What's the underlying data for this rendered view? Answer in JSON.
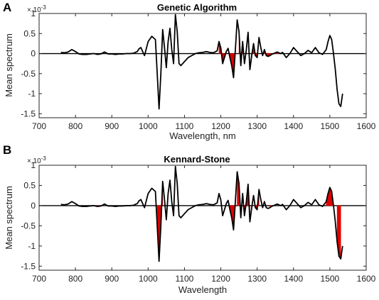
{
  "chart_data": [
    {
      "type": "line",
      "panel_label": "A",
      "title": "Genetic Algorithm",
      "xlabel": "Wavelength, nm",
      "ylabel": "Mean spectrum",
      "y_exponent": "× 10",
      "y_exponent_power": "-3",
      "xlim": [
        700,
        1600
      ],
      "ylim": [
        -1.6,
        1.0
      ],
      "xticks": [
        "700",
        "800",
        "900",
        "1000",
        "1100",
        "1200",
        "1300",
        "1400",
        "1500",
        "1600"
      ],
      "yticks": [
        "1",
        "0.5",
        "0",
        "-0.5",
        "-1",
        "-1.5"
      ],
      "grid": false,
      "series": [
        {
          "color": "#000000",
          "x": [
            760,
            770,
            780,
            790,
            800,
            810,
            820,
            830,
            840,
            850,
            860,
            870,
            880,
            890,
            900,
            910,
            920,
            930,
            940,
            950,
            960,
            970,
            975,
            980,
            990,
            1000,
            1010,
            1020,
            1025,
            1030,
            1035,
            1040,
            1045,
            1050,
            1055,
            1060,
            1065,
            1070,
            1075,
            1080,
            1085,
            1090,
            1100,
            1110,
            1120,
            1130,
            1140,
            1150,
            1160,
            1170,
            1180,
            1190,
            1195,
            1200,
            1205,
            1210,
            1215,
            1220,
            1225,
            1230,
            1235,
            1240,
            1245,
            1250,
            1255,
            1260,
            1265,
            1270,
            1275,
            1280,
            1285,
            1290,
            1295,
            1300,
            1305,
            1310,
            1315,
            1320,
            1325,
            1330,
            1335,
            1340,
            1345,
            1350,
            1355,
            1360,
            1365,
            1370,
            1380,
            1390,
            1400,
            1410,
            1420,
            1430,
            1440,
            1450,
            1460,
            1470,
            1480,
            1490,
            1495,
            1500,
            1505,
            1510,
            1515,
            1520,
            1525,
            1530,
            1535
          ],
          "y": [
            0.03,
            0.02,
            0.04,
            0.1,
            0.05,
            -0.01,
            -0.02,
            -0.02,
            -0.01,
            0.0,
            -0.02,
            -0.01,
            0.04,
            -0.01,
            -0.01,
            -0.02,
            -0.01,
            -0.01,
            0.0,
            0.0,
            0.01,
            0.05,
            0.12,
            0.15,
            -0.05,
            0.3,
            0.43,
            0.35,
            -0.5,
            -1.38,
            -0.5,
            0.6,
            0.15,
            -0.35,
            0.3,
            0.63,
            0.1,
            -0.25,
            0.97,
            0.55,
            -0.25,
            -0.3,
            -0.2,
            -0.1,
            -0.05,
            0.0,
            0.02,
            0.03,
            0.05,
            0.03,
            0.02,
            0.07,
            0.3,
            0.14,
            -0.25,
            -0.1,
            0.05,
            0.13,
            -0.1,
            -0.3,
            -0.6,
            0.1,
            0.84,
            0.55,
            -0.3,
            0.3,
            -0.25,
            0.08,
            0.53,
            -0.4,
            -0.05,
            0.25,
            -0.05,
            -0.1,
            0.4,
            0.15,
            -0.05,
            0.1,
            -0.05,
            -0.07,
            -0.05,
            -0.02,
            0.0,
            0.02,
            0.04,
            0.02,
            0.0,
            0.03,
            -0.1,
            0.0,
            0.15,
            0.05,
            -0.05,
            0.0,
            0.08,
            0.02,
            0.15,
            0.02,
            -0.02,
            0.1,
            0.3,
            0.45,
            0.35,
            0.0,
            -0.4,
            -0.9,
            -1.25,
            -1.32,
            -1.0
          ]
        }
      ],
      "highlight_segments": [
        [
          1195,
          1215
        ],
        [
          1225,
          1240
        ],
        [
          1250,
          1260
        ],
        [
          1285,
          1300
        ],
        [
          1320,
          1360
        ]
      ]
    },
    {
      "type": "line",
      "panel_label": "B",
      "title": "Kennard-Stone",
      "xlabel": "Wavelength",
      "ylabel": "Mean spectrum",
      "y_exponent": "× 10",
      "y_exponent_power": "-3",
      "xlim": [
        700,
        1600
      ],
      "ylim": [
        -1.6,
        1.0
      ],
      "xticks": [
        "700",
        "800",
        "900",
        "1000",
        "1100",
        "1200",
        "1300",
        "1400",
        "1500",
        "1600"
      ],
      "yticks": [
        "1",
        "0.5",
        "0",
        "-0.5",
        "-1",
        "-1.5"
      ],
      "grid": false,
      "series": [
        {
          "color": "#000000",
          "x": [
            760,
            770,
            780,
            790,
            800,
            810,
            820,
            830,
            840,
            850,
            860,
            870,
            880,
            890,
            900,
            910,
            920,
            930,
            940,
            950,
            960,
            970,
            975,
            980,
            990,
            1000,
            1010,
            1020,
            1025,
            1030,
            1035,
            1040,
            1045,
            1050,
            1055,
            1060,
            1065,
            1070,
            1075,
            1080,
            1085,
            1090,
            1100,
            1110,
            1120,
            1130,
            1140,
            1150,
            1160,
            1170,
            1180,
            1190,
            1195,
            1200,
            1205,
            1210,
            1215,
            1220,
            1225,
            1230,
            1235,
            1240,
            1245,
            1250,
            1255,
            1260,
            1265,
            1270,
            1275,
            1280,
            1285,
            1290,
            1295,
            1300,
            1305,
            1310,
            1315,
            1320,
            1325,
            1330,
            1335,
            1340,
            1345,
            1350,
            1355,
            1360,
            1365,
            1370,
            1380,
            1390,
            1400,
            1410,
            1420,
            1430,
            1440,
            1450,
            1460,
            1470,
            1480,
            1490,
            1495,
            1500,
            1505,
            1510,
            1515,
            1520,
            1525,
            1530,
            1535
          ],
          "y": [
            0.03,
            0.02,
            0.04,
            0.1,
            0.05,
            -0.01,
            -0.02,
            -0.02,
            -0.01,
            0.0,
            -0.02,
            -0.01,
            0.04,
            -0.01,
            -0.01,
            -0.02,
            -0.01,
            -0.01,
            0.0,
            0.0,
            0.01,
            0.05,
            0.12,
            0.15,
            -0.05,
            0.3,
            0.43,
            0.35,
            -0.5,
            -1.38,
            -0.5,
            0.6,
            0.15,
            -0.35,
            0.3,
            0.63,
            0.1,
            -0.25,
            0.97,
            0.55,
            -0.25,
            -0.3,
            -0.2,
            -0.1,
            -0.05,
            0.0,
            0.02,
            0.03,
            0.05,
            0.03,
            0.02,
            0.07,
            0.3,
            0.14,
            -0.25,
            -0.1,
            0.05,
            0.13,
            -0.1,
            -0.3,
            -0.6,
            0.1,
            0.84,
            0.55,
            -0.3,
            0.3,
            -0.25,
            0.08,
            0.53,
            -0.4,
            -0.05,
            0.25,
            -0.05,
            -0.1,
            0.4,
            0.15,
            -0.05,
            0.1,
            -0.05,
            -0.07,
            -0.05,
            -0.02,
            0.0,
            0.02,
            0.04,
            0.02,
            0.0,
            0.03,
            -0.1,
            0.0,
            0.15,
            0.05,
            -0.05,
            0.0,
            0.08,
            0.02,
            0.15,
            0.02,
            -0.02,
            0.1,
            0.3,
            0.45,
            0.35,
            0.0,
            -0.4,
            -0.9,
            -1.25,
            -1.32,
            -1.0
          ]
        }
      ],
      "highlight_segments": [
        [
          855,
          865
        ],
        [
          1025,
          1040
        ],
        [
          1225,
          1240
        ],
        [
          1245,
          1250
        ],
        [
          1265,
          1280
        ],
        [
          1295,
          1305
        ],
        [
          1335,
          1345
        ],
        [
          1490,
          1510
        ],
        [
          1520,
          1530
        ]
      ]
    }
  ]
}
